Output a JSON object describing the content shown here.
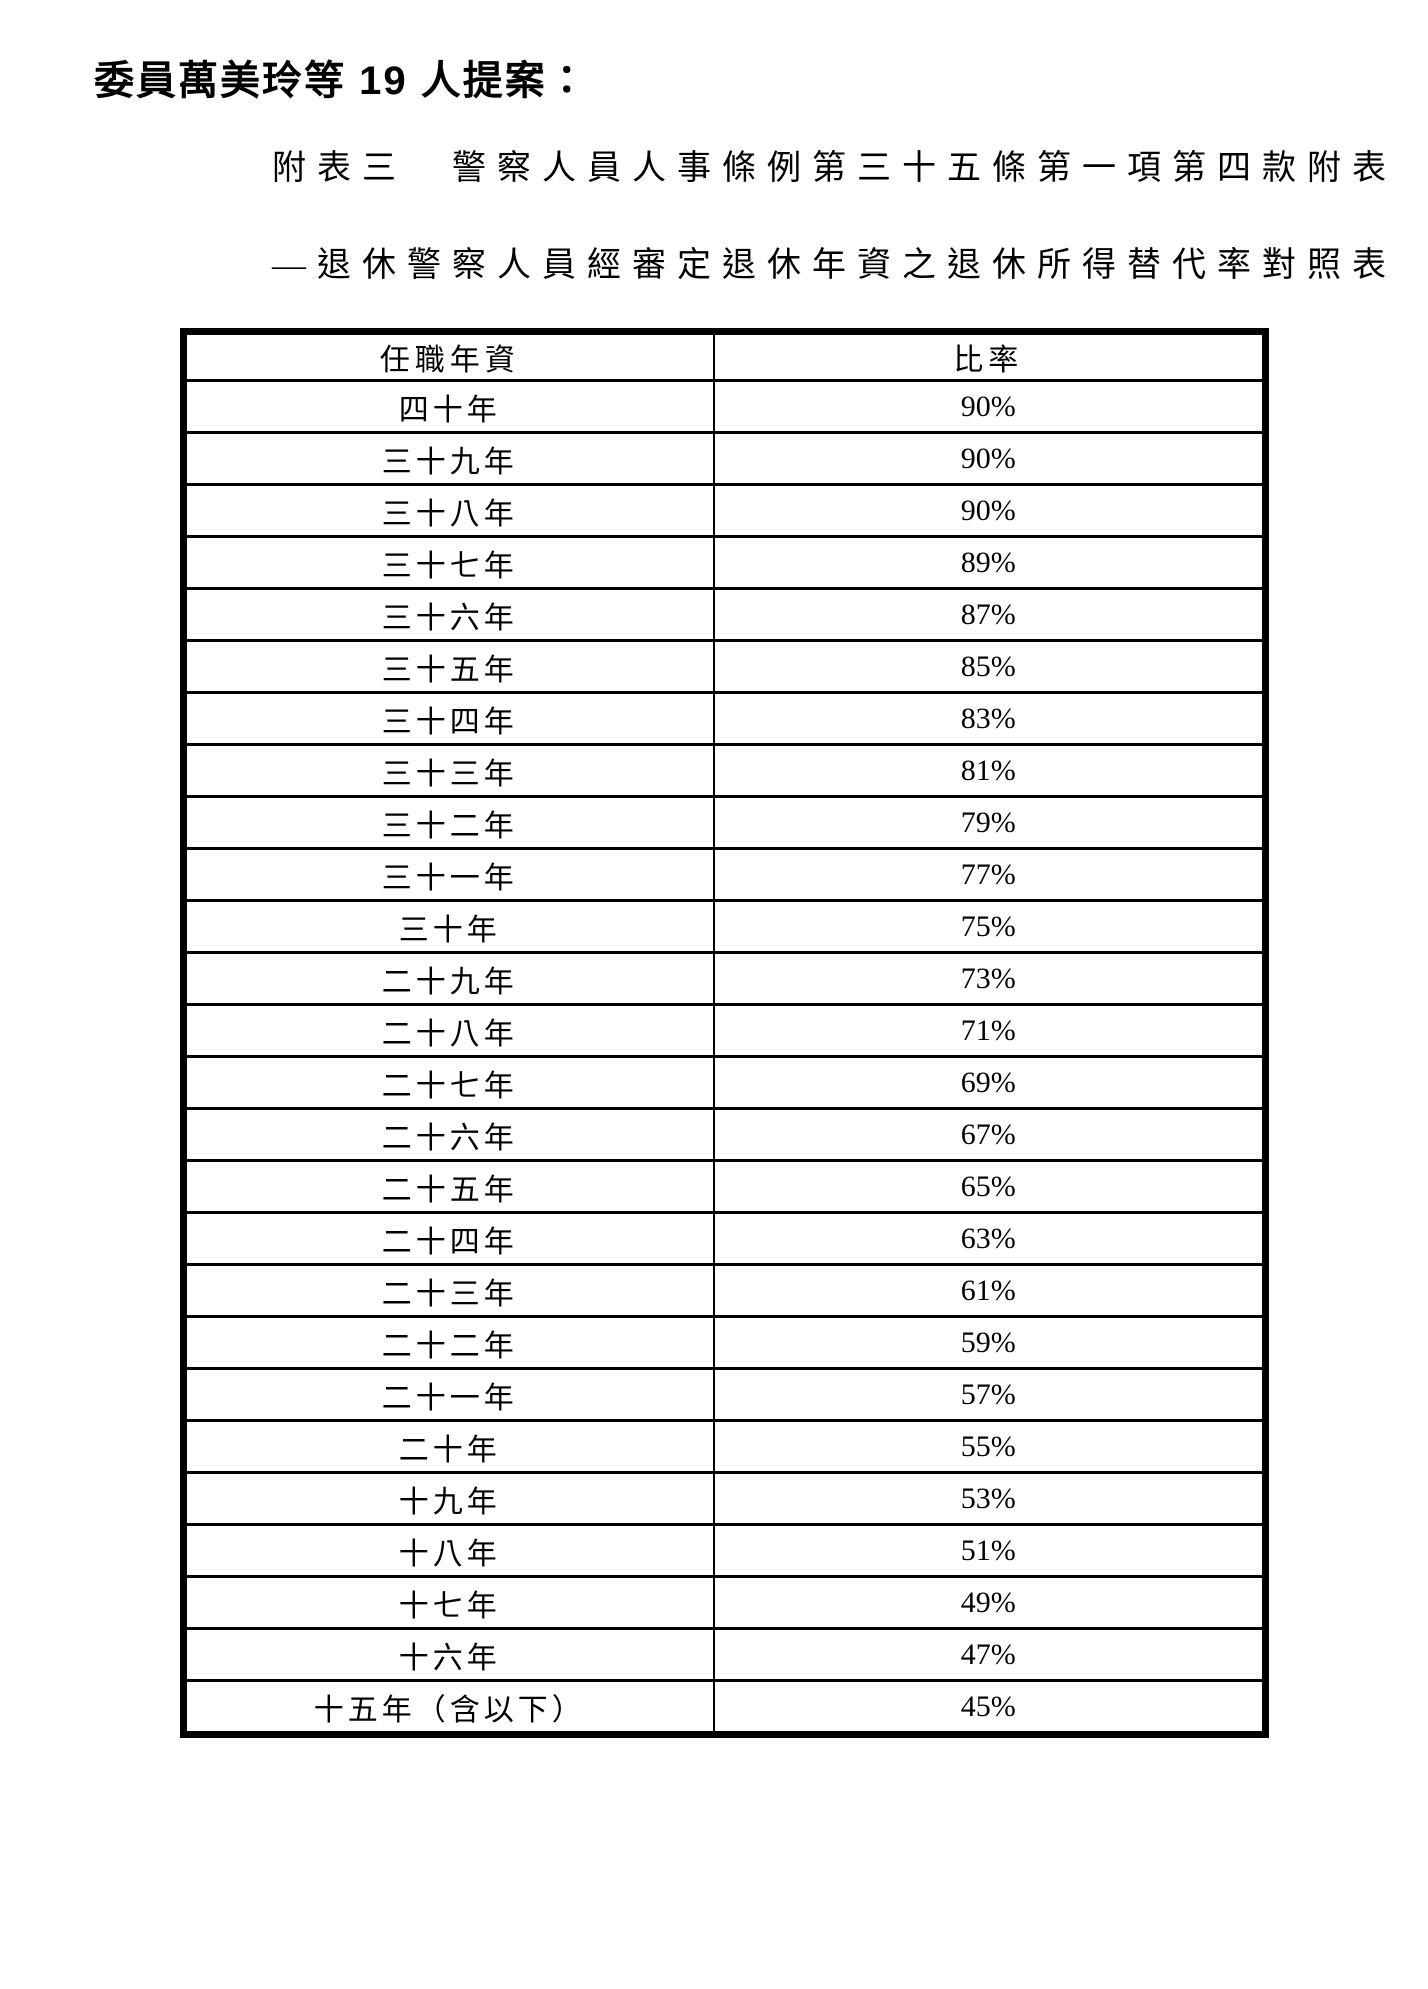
{
  "page": {
    "heading": "委員萬美玲等 19 人提案：",
    "title_line1": "附表三　警察人員人事條例第三十五條第一項第四款附表",
    "title_line2": "—退休警察人員經審定退休年資之退休所得替代率對照表"
  },
  "table": {
    "headers": [
      "任職年資",
      "比率"
    ],
    "rows": [
      {
        "years": "四十年",
        "rate": "90%"
      },
      {
        "years": "三十九年",
        "rate": "90%"
      },
      {
        "years": "三十八年",
        "rate": "90%"
      },
      {
        "years": "三十七年",
        "rate": "89%"
      },
      {
        "years": "三十六年",
        "rate": "87%"
      },
      {
        "years": "三十五年",
        "rate": "85%"
      },
      {
        "years": "三十四年",
        "rate": "83%"
      },
      {
        "years": "三十三年",
        "rate": "81%"
      },
      {
        "years": "三十二年",
        "rate": "79%"
      },
      {
        "years": "三十一年",
        "rate": "77%"
      },
      {
        "years": "三十年",
        "rate": "75%"
      },
      {
        "years": "二十九年",
        "rate": "73%"
      },
      {
        "years": "二十八年",
        "rate": "71%"
      },
      {
        "years": "二十七年",
        "rate": "69%"
      },
      {
        "years": "二十六年",
        "rate": "67%"
      },
      {
        "years": "二十五年",
        "rate": "65%"
      },
      {
        "years": "二十四年",
        "rate": "63%"
      },
      {
        "years": "二十三年",
        "rate": "61%"
      },
      {
        "years": "二十二年",
        "rate": "59%"
      },
      {
        "years": "二十一年",
        "rate": "57%"
      },
      {
        "years": "二十年",
        "rate": "55%"
      },
      {
        "years": "十九年",
        "rate": "53%"
      },
      {
        "years": "十八年",
        "rate": "51%"
      },
      {
        "years": "十七年",
        "rate": "49%"
      },
      {
        "years": "十六年",
        "rate": "47%"
      },
      {
        "years": "十五年（含以下）",
        "rate": "45%"
      }
    ]
  },
  "colors": {
    "text": "#000000",
    "border": "#000000",
    "background": "#ffffff"
  }
}
